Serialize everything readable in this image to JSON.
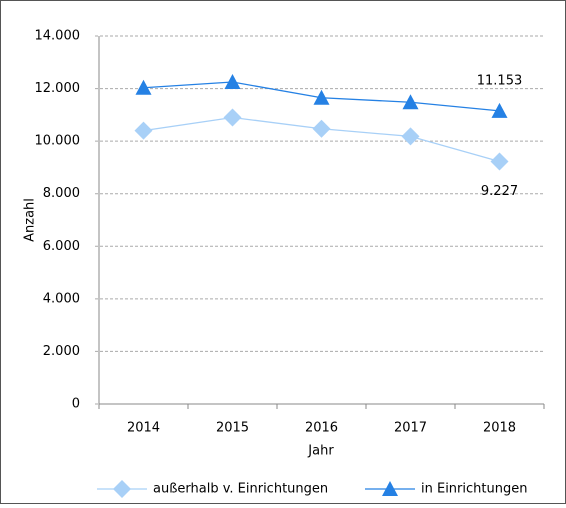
{
  "chart_data": {
    "type": "line",
    "categories": [
      "2014",
      "2015",
      "2016",
      "2017",
      "2018"
    ],
    "x_label": "Jahr",
    "y_label": "Anzahl",
    "series": [
      {
        "name": "außerhalb v. Einrichtungen",
        "color": "#a8d0f7",
        "marker": "diamond",
        "values": [
          10400,
          10900,
          10470,
          10180,
          9227
        ],
        "value_labels": [
          null,
          null,
          null,
          null,
          "9.227"
        ]
      },
      {
        "name": "in Einrichtungen",
        "color": "#2581e4",
        "marker": "triangle",
        "values": [
          12030,
          12250,
          11650,
          11480,
          11153
        ],
        "value_labels": [
          null,
          null,
          null,
          null,
          "11.153"
        ]
      }
    ],
    "ylim": [
      0,
      14000
    ],
    "yticks": [
      0,
      {
        "value": 2000,
        "label": "2.000"
      },
      {
        "value": 4000,
        "label": "4.000"
      },
      {
        "value": 6000,
        "label": "6.000"
      },
      {
        "value": 8000,
        "label": "8.000"
      },
      {
        "value": 10000,
        "label": "10.000"
      },
      {
        "value": 12000,
        "label": "12.000"
      },
      {
        "value": 14000,
        "label": "14.000"
      }
    ],
    "grid": true,
    "legend": "bottom"
  }
}
